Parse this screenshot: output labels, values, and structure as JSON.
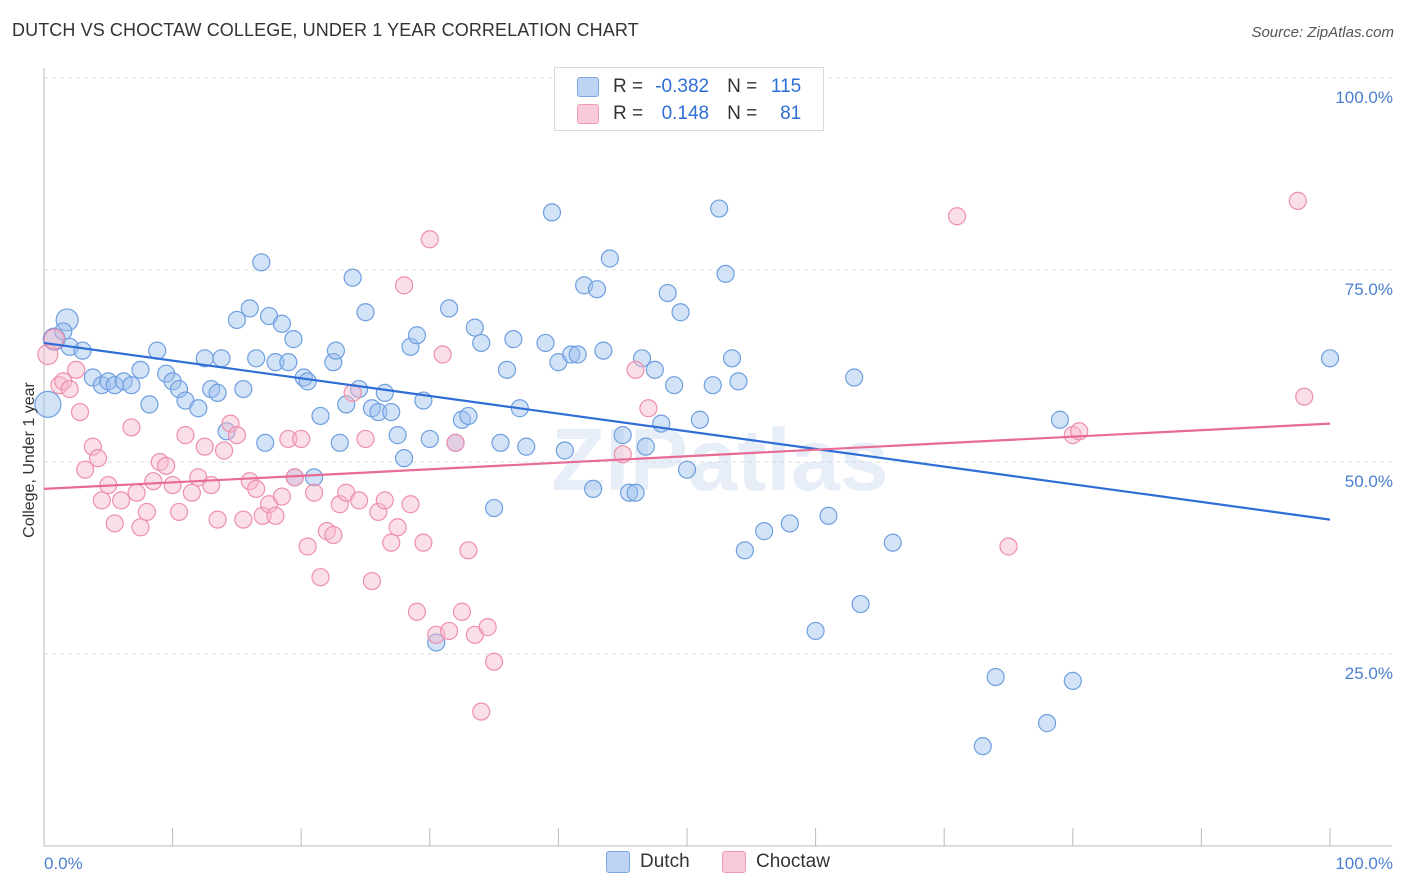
{
  "chart_data": {
    "type": "scatter",
    "title": "DUTCH VS CHOCTAW COLLEGE, UNDER 1 YEAR CORRELATION CHART",
    "source": "Source: ZipAtlas.com",
    "ylabel": "College, Under 1 year",
    "xlabel": "",
    "xlim": [
      0,
      100
    ],
    "ylim": [
      0,
      100
    ],
    "x_tick_labels": [
      "0.0%",
      "100.0%"
    ],
    "y_tick_labels": [
      "25.0%",
      "50.0%",
      "75.0%",
      "100.0%"
    ],
    "y_tick_values": [
      25,
      50,
      75,
      100
    ],
    "watermark": "ZIPatlas",
    "legend": {
      "rows": [
        {
          "r_label": "R =",
          "r_value": "-0.382",
          "n_label": "N =",
          "n_value": "115"
        },
        {
          "r_label": "R =",
          "r_value": "0.148",
          "n_label": "N =",
          "n_value": "81"
        }
      ]
    },
    "series": [
      {
        "name": "Dutch",
        "color": "#9cbfee",
        "edge": "#6f9fe0",
        "line_color": "#2e6ed6",
        "r": -0.382,
        "n": 115,
        "trend": {
          "x0": 0,
          "y0": 65.5,
          "x1": 100,
          "y1": 42.5
        },
        "points": [
          [
            0.3,
            57.5
          ],
          [
            0.8,
            66
          ],
          [
            1.8,
            68.5
          ],
          [
            1.5,
            67
          ],
          [
            2,
            65
          ],
          [
            3,
            64.5
          ],
          [
            3.8,
            61
          ],
          [
            4.5,
            60
          ],
          [
            5,
            60.5
          ],
          [
            5.5,
            60
          ],
          [
            6.2,
            60.5
          ],
          [
            6.8,
            60
          ],
          [
            7.5,
            62
          ],
          [
            8.2,
            57.5
          ],
          [
            8.8,
            64.5
          ],
          [
            9.5,
            61.5
          ],
          [
            10,
            60.5
          ],
          [
            10.5,
            59.5
          ],
          [
            11,
            58
          ],
          [
            12,
            57
          ],
          [
            12.5,
            63.5
          ],
          [
            13,
            59.5
          ],
          [
            13.5,
            59
          ],
          [
            13.8,
            63.5
          ],
          [
            14.2,
            54
          ],
          [
            15,
            68.5
          ],
          [
            15.5,
            59.5
          ],
          [
            16,
            70
          ],
          [
            16.5,
            63.5
          ],
          [
            16.9,
            76
          ],
          [
            17.2,
            52.5
          ],
          [
            17.5,
            69
          ],
          [
            18,
            63
          ],
          [
            18.5,
            68
          ],
          [
            19,
            63
          ],
          [
            19.4,
            66
          ],
          [
            19.5,
            48
          ],
          [
            20.2,
            61
          ],
          [
            20.5,
            60.5
          ],
          [
            21,
            48
          ],
          [
            21.5,
            56
          ],
          [
            22.5,
            63
          ],
          [
            22.7,
            64.5
          ],
          [
            23,
            52.5
          ],
          [
            23.5,
            57.5
          ],
          [
            24,
            74
          ],
          [
            24.5,
            59.5
          ],
          [
            25,
            69.5
          ],
          [
            25.5,
            57
          ],
          [
            26,
            56.5
          ],
          [
            26.5,
            59
          ],
          [
            27,
            56.5
          ],
          [
            27.5,
            53.5
          ],
          [
            28,
            50.5
          ],
          [
            28.5,
            65
          ],
          [
            29,
            66.5
          ],
          [
            29.5,
            58
          ],
          [
            30,
            53
          ],
          [
            30.5,
            26.5
          ],
          [
            31.5,
            70
          ],
          [
            32,
            52.5
          ],
          [
            32.5,
            55.5
          ],
          [
            33,
            56
          ],
          [
            33.5,
            67.5
          ],
          [
            34,
            65.5
          ],
          [
            35,
            44
          ],
          [
            35.5,
            52.5
          ],
          [
            36,
            62
          ],
          [
            36.5,
            66
          ],
          [
            37,
            57
          ],
          [
            37.5,
            52
          ],
          [
            39,
            65.5
          ],
          [
            39.5,
            82.5
          ],
          [
            40,
            63
          ],
          [
            40.5,
            51.5
          ],
          [
            41,
            64
          ],
          [
            41.5,
            64
          ],
          [
            42,
            73
          ],
          [
            42.7,
            46.5
          ],
          [
            43,
            72.5
          ],
          [
            43.5,
            64.5
          ],
          [
            44,
            76.5
          ],
          [
            45,
            53.5
          ],
          [
            45.5,
            46
          ],
          [
            46,
            46
          ],
          [
            46.5,
            63.5
          ],
          [
            46.8,
            52
          ],
          [
            47.5,
            62
          ],
          [
            48,
            55
          ],
          [
            48.5,
            72
          ],
          [
            49,
            60
          ],
          [
            49.5,
            69.5
          ],
          [
            50,
            49
          ],
          [
            51,
            55.5
          ],
          [
            52,
            60
          ],
          [
            52.5,
            83
          ],
          [
            53,
            74.5
          ],
          [
            53.5,
            63.5
          ],
          [
            54,
            60.5
          ],
          [
            54.5,
            38.5
          ],
          [
            56,
            41
          ],
          [
            58,
            42
          ],
          [
            60,
            28
          ],
          [
            61,
            43
          ],
          [
            63,
            61
          ],
          [
            63.5,
            31.5
          ],
          [
            66,
            39.5
          ],
          [
            73,
            13
          ],
          [
            74,
            22
          ],
          [
            78,
            16
          ],
          [
            79,
            55.5
          ],
          [
            80,
            21.5
          ],
          [
            100,
            63.5
          ]
        ]
      },
      {
        "name": "Choctaw",
        "color": "#f7b7ca",
        "edge": "#ee8fad",
        "line_color": "#e86b93",
        "r": 0.148,
        "n": 81,
        "trend": {
          "x0": 0,
          "y0": 46.5,
          "x1": 100,
          "y1": 55
        },
        "points": [
          [
            0.3,
            64
          ],
          [
            0.8,
            66
          ],
          [
            1.2,
            60
          ],
          [
            1.5,
            60.5
          ],
          [
            2,
            59.5
          ],
          [
            2.5,
            62
          ],
          [
            2.8,
            56.5
          ],
          [
            3.2,
            49
          ],
          [
            3.8,
            52
          ],
          [
            4.2,
            50.5
          ],
          [
            4.5,
            45
          ],
          [
            5,
            47
          ],
          [
            5.5,
            42
          ],
          [
            6,
            45
          ],
          [
            6.8,
            54.5
          ],
          [
            7.2,
            46
          ],
          [
            7.5,
            41.5
          ],
          [
            8,
            43.5
          ],
          [
            8.5,
            47.5
          ],
          [
            9,
            50
          ],
          [
            9.5,
            49.5
          ],
          [
            10,
            47
          ],
          [
            10.5,
            43.5
          ],
          [
            11,
            53.5
          ],
          [
            11.5,
            46
          ],
          [
            12,
            48
          ],
          [
            12.5,
            52
          ],
          [
            13,
            47
          ],
          [
            13.5,
            42.5
          ],
          [
            14,
            51.5
          ],
          [
            14.5,
            55
          ],
          [
            15,
            53.5
          ],
          [
            15.5,
            42.5
          ],
          [
            16,
            47.5
          ],
          [
            16.5,
            46.5
          ],
          [
            17,
            43
          ],
          [
            17.5,
            44.5
          ],
          [
            18,
            43
          ],
          [
            18.5,
            45.5
          ],
          [
            19,
            53
          ],
          [
            19.5,
            48
          ],
          [
            20,
            53
          ],
          [
            20.5,
            39
          ],
          [
            21,
            46
          ],
          [
            21.5,
            35
          ],
          [
            22,
            41
          ],
          [
            22.5,
            40.5
          ],
          [
            23,
            44.5
          ],
          [
            23.5,
            46
          ],
          [
            24,
            59
          ],
          [
            24.5,
            45
          ],
          [
            25,
            53
          ],
          [
            25.5,
            34.5
          ],
          [
            26,
            43.5
          ],
          [
            26.5,
            45
          ],
          [
            27,
            39.5
          ],
          [
            27.5,
            41.5
          ],
          [
            28,
            73
          ],
          [
            28.5,
            44.5
          ],
          [
            29,
            30.5
          ],
          [
            29.5,
            39.5
          ],
          [
            30,
            79
          ],
          [
            30.5,
            27.5
          ],
          [
            31,
            64
          ],
          [
            31.5,
            28
          ],
          [
            32,
            52.5
          ],
          [
            32.5,
            30.5
          ],
          [
            33,
            38.5
          ],
          [
            33.5,
            27.5
          ],
          [
            34,
            17.5
          ],
          [
            34.5,
            28.5
          ],
          [
            35,
            24
          ],
          [
            45,
            51
          ],
          [
            46,
            62
          ],
          [
            47,
            57
          ],
          [
            71,
            82
          ],
          [
            75,
            39
          ],
          [
            80,
            53.5
          ],
          [
            80.5,
            54
          ],
          [
            97.5,
            84
          ],
          [
            98,
            58.5
          ]
        ]
      }
    ]
  }
}
